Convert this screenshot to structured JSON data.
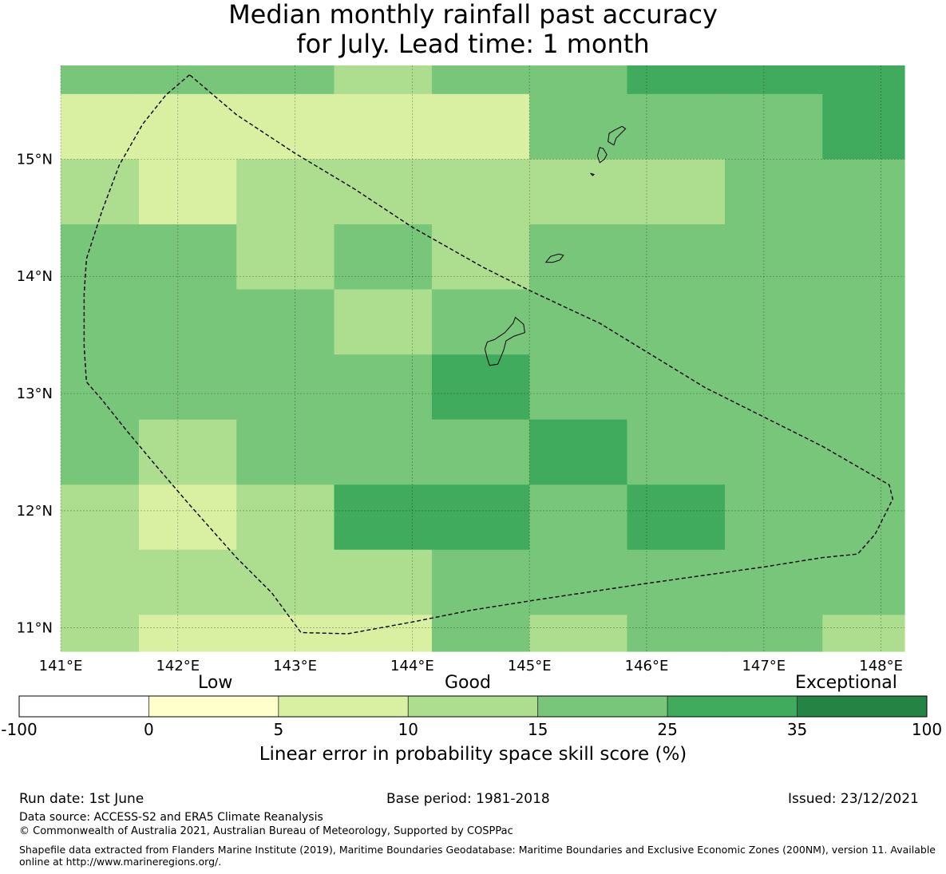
{
  "title_lines": [
    "Median monthly rainfall past accuracy",
    "for July. Lead time: 1 month"
  ],
  "map": {
    "lon_range": [
      141.0,
      148.2
    ],
    "lat_range": [
      10.8,
      15.8
    ],
    "x_ticks": [
      {
        "value": 141,
        "label": "141°E"
      },
      {
        "value": 142,
        "label": "142°E"
      },
      {
        "value": 143,
        "label": "143°E"
      },
      {
        "value": 144,
        "label": "144°E"
      },
      {
        "value": 145,
        "label": "145°E"
      },
      {
        "value": 146,
        "label": "146°E"
      },
      {
        "value": 147,
        "label": "147°E"
      },
      {
        "value": 148,
        "label": "148°E"
      }
    ],
    "y_ticks": [
      {
        "value": 11,
        "label": "11°N"
      },
      {
        "value": 12,
        "label": "12°N"
      },
      {
        "value": 13,
        "label": "13°N"
      },
      {
        "value": 14,
        "label": "14°N"
      },
      {
        "value": 15,
        "label": "15°N"
      }
    ],
    "cell_lon_edges": [
      141.0,
      141.667,
      142.5,
      143.333,
      144.167,
      145.0,
      145.833,
      146.667,
      147.5,
      148.2
    ],
    "cell_lat_edges": [
      15.8,
      15.556,
      15.0,
      14.444,
      13.889,
      13.333,
      12.778,
      12.222,
      11.667,
      11.111,
      10.8
    ],
    "skill_class_rows_north_to_south": [
      [
        4,
        4,
        4,
        3,
        4,
        4,
        5,
        5,
        5
      ],
      [
        2,
        2,
        2,
        2,
        2,
        4,
        4,
        4,
        5
      ],
      [
        3,
        2,
        3,
        3,
        3,
        3,
        3,
        4,
        4
      ],
      [
        4,
        4,
        3,
        4,
        3,
        4,
        4,
        4,
        4
      ],
      [
        4,
        4,
        4,
        3,
        4,
        4,
        4,
        4,
        4
      ],
      [
        4,
        4,
        4,
        4,
        5,
        4,
        4,
        4,
        4
      ],
      [
        4,
        3,
        4,
        4,
        4,
        5,
        4,
        4,
        4
      ],
      [
        3,
        2,
        3,
        5,
        5,
        4,
        5,
        4,
        4
      ],
      [
        3,
        3,
        3,
        3,
        4,
        4,
        4,
        4,
        4
      ],
      [
        3,
        2,
        2,
        2,
        4,
        3,
        4,
        4,
        3
      ]
    ],
    "eez_boundary": [
      [
        142.1,
        15.72
      ],
      [
        141.9,
        15.55
      ],
      [
        141.7,
        15.3
      ],
      [
        141.5,
        14.95
      ],
      [
        141.35,
        14.55
      ],
      [
        141.22,
        14.15
      ],
      [
        141.2,
        13.85
      ],
      [
        141.2,
        13.4
      ],
      [
        141.22,
        13.1
      ],
      [
        141.35,
        12.95
      ],
      [
        141.55,
        12.7
      ],
      [
        141.8,
        12.4
      ],
      [
        142.1,
        12.05
      ],
      [
        142.5,
        11.6
      ],
      [
        142.8,
        11.3
      ],
      [
        143.05,
        10.96
      ],
      [
        143.45,
        10.95
      ],
      [
        144.0,
        11.05
      ],
      [
        144.5,
        11.15
      ],
      [
        145.0,
        11.23
      ],
      [
        146.0,
        11.38
      ],
      [
        147.0,
        11.52
      ],
      [
        147.5,
        11.6
      ],
      [
        147.8,
        11.63
      ],
      [
        147.95,
        11.8
      ],
      [
        148.1,
        12.1
      ],
      [
        148.07,
        12.22
      ],
      [
        147.5,
        12.55
      ],
      [
        146.5,
        13.05
      ],
      [
        145.6,
        13.6
      ],
      [
        145.0,
        13.88
      ],
      [
        144.6,
        14.08
      ],
      [
        144.0,
        14.42
      ],
      [
        143.5,
        14.75
      ],
      [
        143.0,
        15.05
      ],
      [
        142.5,
        15.38
      ],
      [
        142.1,
        15.72
      ]
    ],
    "islands": [
      [
        [
          145.79,
          15.28
        ],
        [
          145.73,
          15.25
        ],
        [
          145.68,
          15.22
        ],
        [
          145.67,
          15.15
        ],
        [
          145.72,
          15.12
        ],
        [
          145.74,
          15.18
        ],
        [
          145.77,
          15.21
        ],
        [
          145.82,
          15.26
        ],
        [
          145.79,
          15.28
        ]
      ],
      [
        [
          145.6,
          15.1
        ],
        [
          145.58,
          15.03
        ],
        [
          145.6,
          14.97
        ],
        [
          145.64,
          15.0
        ],
        [
          145.66,
          15.04
        ],
        [
          145.63,
          15.09
        ],
        [
          145.6,
          15.1
        ]
      ],
      [
        [
          145.52,
          14.88
        ],
        [
          145.55,
          14.87
        ],
        [
          145.54,
          14.86
        ],
        [
          145.52,
          14.88
        ]
      ],
      [
        [
          145.14,
          14.12
        ],
        [
          145.18,
          14.17
        ],
        [
          145.25,
          14.19
        ],
        [
          145.29,
          14.18
        ],
        [
          145.26,
          14.14
        ],
        [
          145.2,
          14.12
        ],
        [
          145.14,
          14.12
        ]
      ],
      [
        [
          144.88,
          13.65
        ],
        [
          144.95,
          13.59
        ],
        [
          144.96,
          13.52
        ],
        [
          144.87,
          13.49
        ],
        [
          144.8,
          13.45
        ],
        [
          144.78,
          13.37
        ],
        [
          144.73,
          13.25
        ],
        [
          144.66,
          13.24
        ],
        [
          144.64,
          13.3
        ],
        [
          144.62,
          13.38
        ],
        [
          144.64,
          13.44
        ],
        [
          144.7,
          13.46
        ],
        [
          144.79,
          13.52
        ],
        [
          144.86,
          13.6
        ],
        [
          144.88,
          13.65
        ]
      ]
    ]
  },
  "colorbar": {
    "categories": [
      "Low",
      "Good",
      "Exceptional"
    ],
    "boundaries": [
      -100,
      0,
      5,
      10,
      15,
      25,
      35,
      100
    ],
    "colors": [
      "#ffffff",
      "#ffffcc",
      "#d9f0a3",
      "#addd8e",
      "#78c679",
      "#41ab5d",
      "#238443"
    ],
    "label": "Linear error in probability space skill score (%)"
  },
  "footer": {
    "run_date": "Run date: 1st June",
    "base_period": "Base period: 1981-2018",
    "issued": "Issued: 23/12/2021",
    "data_source": "Data source: ACCESS-S2 and ERA5 Climate Reanalysis",
    "copyright": "© Commonwealth of Australia 2021, Australian Bureau of Meteorology, Supported by COSPPac",
    "shapefile_note": "Shapefile data extracted from Flanders Marine Institute (2019), Maritime Boundaries Geodatabase: Maritime Boundaries and Exclusive Economic Zones (200NM), version 11. Available online at http://www.marineregions.org/."
  }
}
